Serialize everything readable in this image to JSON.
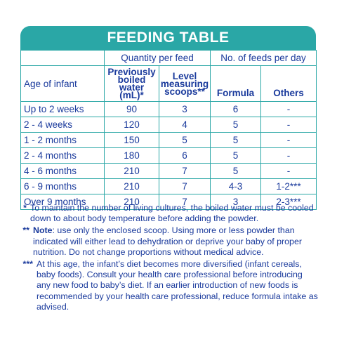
{
  "title": "FEEDING TABLE",
  "headers": {
    "quantity_group": "Quantity per feed",
    "feeds_group": "No. of feeds per day",
    "age": "Age of infant",
    "water_line1": "Previously",
    "water_line2": "boiled water",
    "water_line3": "(mL)*",
    "scoops_line1": "Level",
    "scoops_line2": "measuring",
    "scoops_line3": "scoops**",
    "formula": "Formula",
    "others": "Others"
  },
  "rows": [
    {
      "age": "Up to 2 weeks",
      "water": "90",
      "scoops": "3",
      "formula": "6",
      "others": "-"
    },
    {
      "age": "2 - 4 weeks",
      "water": "120",
      "scoops": "4",
      "formula": "5",
      "others": "-"
    },
    {
      "age": "1 - 2 months",
      "water": "150",
      "scoops": "5",
      "formula": "5",
      "others": "-"
    },
    {
      "age": "2 - 4 months",
      "water": "180",
      "scoops": "6",
      "formula": "5",
      "others": "-"
    },
    {
      "age": "4 - 6 months",
      "water": "210",
      "scoops": "7",
      "formula": "5",
      "others": "-"
    },
    {
      "age": "6 - 9 months",
      "water": "210",
      "scoops": "7",
      "formula": "4-3",
      "others": "1-2***"
    },
    {
      "age": "Over 9 months",
      "water": "210",
      "scoops": "7",
      "formula": "3",
      "others": "2-3***"
    }
  ],
  "notes": [
    {
      "mark": "*",
      "label": "",
      "text": "To maintain the number of living cultures, the boiled water must be cooled down to about body temperature before adding the powder."
    },
    {
      "mark": "**",
      "label": "Note",
      "text": ": use only the enclosed scoop. Using more or less powder than indicated will either lead to dehydration or deprive your baby of proper nutrition. Do not change proportions without medical advice."
    },
    {
      "mark": "***",
      "label": "",
      "text": "At this age, the infant’s diet becomes more diversified (infant cereals, baby foods). Consult your health care professional before introducing any new food to baby’s diet. If an earlier introduction of new foods is recommended by your health care professional, reduce formula intake as advised."
    }
  ],
  "colors": {
    "accent": "#2aa7a6",
    "text": "#1a3a9c"
  }
}
